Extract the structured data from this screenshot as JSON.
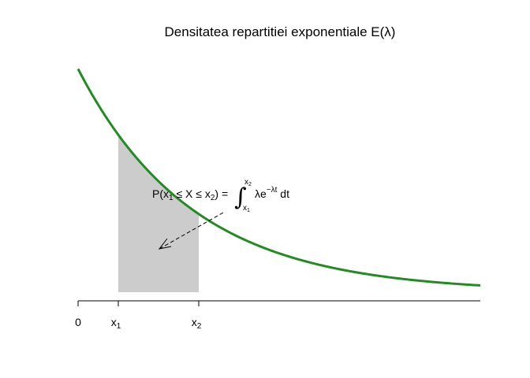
{
  "chart_data": {
    "type": "area",
    "title": "Densitatea repartitiei exponentiale E(λ)",
    "xlabel": "",
    "ylabel": "",
    "xlim": [
      0,
      10
    ],
    "lambda": 0.35,
    "curve_color": "#228B22",
    "shade_color": "#CCCCCC",
    "shaded_interval": [
      1,
      3
    ],
    "ticks": [
      {
        "x": 0,
        "label": "0",
        "sub": ""
      },
      {
        "x": 1,
        "label": "x",
        "sub": "1"
      },
      {
        "x": 3,
        "label": "x",
        "sub": "2"
      }
    ],
    "annotation": {
      "prefix": "P(x",
      "sub1": "1",
      "mid": " ≤ X ≤ x",
      "sub2": "2",
      "suffix": ") = ",
      "integral": "∫",
      "lower": "x1",
      "upper": "x2",
      "lambda_sym": "λ",
      "exp_base": "e",
      "exp_power": "−λt",
      "dt": " dt"
    },
    "grid": false,
    "legend": "none"
  }
}
